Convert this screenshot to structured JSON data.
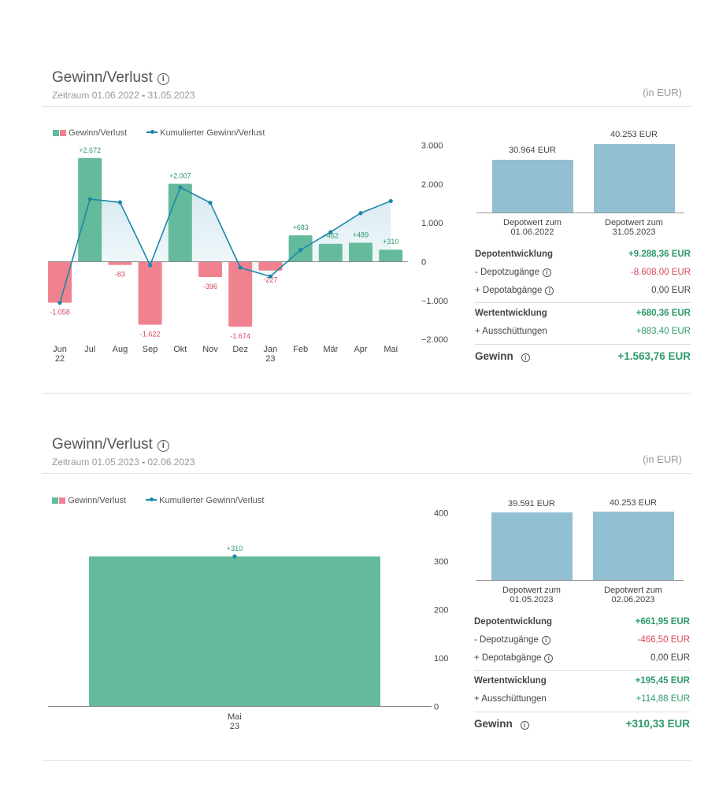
{
  "sections": [
    {
      "title": "Gewinn/Verlust",
      "period_prefix": "Zeitraum",
      "period_start": "01.06.2022",
      "period_sep": "-",
      "period_end": "31.05.2023",
      "unit": "(in EUR)",
      "legend_bar": "Gewinn/Verlust",
      "legend_line": "Kumulierter Gewinn/Verlust",
      "depot_start_value": "30.964 EUR",
      "depot_end_value": "40.253 EUR",
      "depot_start_label": [
        "Depotwert zum",
        "01.06.2022"
      ],
      "depot_end_label": [
        "Depotwert zum",
        "31.05.2023"
      ],
      "rows": {
        "depotentwicklung": {
          "label": "Depotentwicklung",
          "value": "+9.288,36 EUR"
        },
        "depotzugaenge": {
          "label": "- Depotzugänge",
          "value": "-8.608,00 EUR"
        },
        "depotabgaenge": {
          "label": "+ Depotabgänge",
          "value": "0,00 EUR"
        },
        "wertentwicklung": {
          "label": "Wertentwicklung",
          "value": "+680,36 EUR"
        },
        "ausschuettungen": {
          "label": "+ Ausschüttungen",
          "value": "+883,40 EUR"
        },
        "gewinn": {
          "label": "Gewinn",
          "value": "+1.563,76 EUR"
        }
      }
    },
    {
      "title": "Gewinn/Verlust",
      "period_prefix": "Zeitraum",
      "period_start": "01.05.2023",
      "period_sep": "-",
      "period_end": "02.06.2023",
      "unit": "(in EUR)",
      "legend_bar": "Gewinn/Verlust",
      "legend_line": "Kumulierter Gewinn/Verlust",
      "depot_start_value": "39.591 EUR",
      "depot_end_value": "40.253 EUR",
      "depot_start_label": [
        "Depotwert zum",
        "01.05.2023"
      ],
      "depot_end_label": [
        "Depotwert zum",
        "02.06.2023"
      ],
      "rows": {
        "depotentwicklung": {
          "label": "Depotentwicklung",
          "value": "+661,95 EUR"
        },
        "depotzugaenge": {
          "label": "- Depotzugänge",
          "value": "-466,50 EUR"
        },
        "depotabgaenge": {
          "label": "+ Depotabgänge",
          "value": "0,00 EUR"
        },
        "wertentwicklung": {
          "label": "Wertentwicklung",
          "value": "+195,45 EUR"
        },
        "ausschuettungen": {
          "label": "+ Ausschüttungen",
          "value": "+114,88 EUR"
        },
        "gewinn": {
          "label": "Gewinn",
          "value": "+310,33 EUR"
        }
      }
    }
  ],
  "colors": {
    "positive": "#64bb9c",
    "negative": "#f0828f",
    "line": "#1d87ab",
    "depot": "#93bfd2",
    "pos_text": "#2e9a6a",
    "neg_text": "#d9455c"
  },
  "info_icon": "info-circle-icon",
  "chart_data": [
    {
      "type": "bar",
      "categories": [
        "Jun\n22",
        "Jul",
        "Aug",
        "Sep",
        "Okt",
        "Nov",
        "Dez",
        "Jan\n23",
        "Feb",
        "Mär",
        "Apr",
        "Mai"
      ],
      "series": [
        {
          "name": "Gewinn/Verlust",
          "type": "bar",
          "values": [
            -1058,
            2672,
            -83,
            -1622,
            2007,
            -396,
            -1674,
            -227,
            683,
            462,
            489,
            310
          ],
          "labels": [
            "-1.058",
            "+2.672",
            "-83",
            "-1.622",
            "+2.007",
            "-396",
            "-1.674",
            "-227",
            "+683",
            "+462",
            "+489",
            "+310"
          ]
        },
        {
          "name": "Kumulierter Gewinn/Verlust",
          "type": "line",
          "values": [
            -1058,
            1614,
            1531,
            -91,
            1916,
            1520,
            -154,
            -381,
            302,
            764,
            1253,
            1563
          ]
        }
      ],
      "yticks": [
        3000,
        2000,
        1000,
        0,
        -1000,
        -2000
      ],
      "ytick_labels": [
        "3.000",
        "2.000",
        "1.000",
        "0",
        "−1.000",
        "−2.000"
      ],
      "ylim": [
        -2000,
        3000
      ]
    },
    {
      "type": "bar",
      "categories": [
        "Mai\n23"
      ],
      "series": [
        {
          "name": "Gewinn/Verlust",
          "type": "bar",
          "values": [
            310
          ],
          "labels": [
            "+310"
          ]
        },
        {
          "name": "Kumulierter Gewinn/Verlust",
          "type": "line",
          "values": [
            310
          ]
        }
      ],
      "yticks": [
        400,
        300,
        200,
        100,
        0
      ],
      "ytick_labels": [
        "400",
        "300",
        "200",
        "100",
        "0"
      ],
      "ylim": [
        0,
        400
      ]
    }
  ]
}
